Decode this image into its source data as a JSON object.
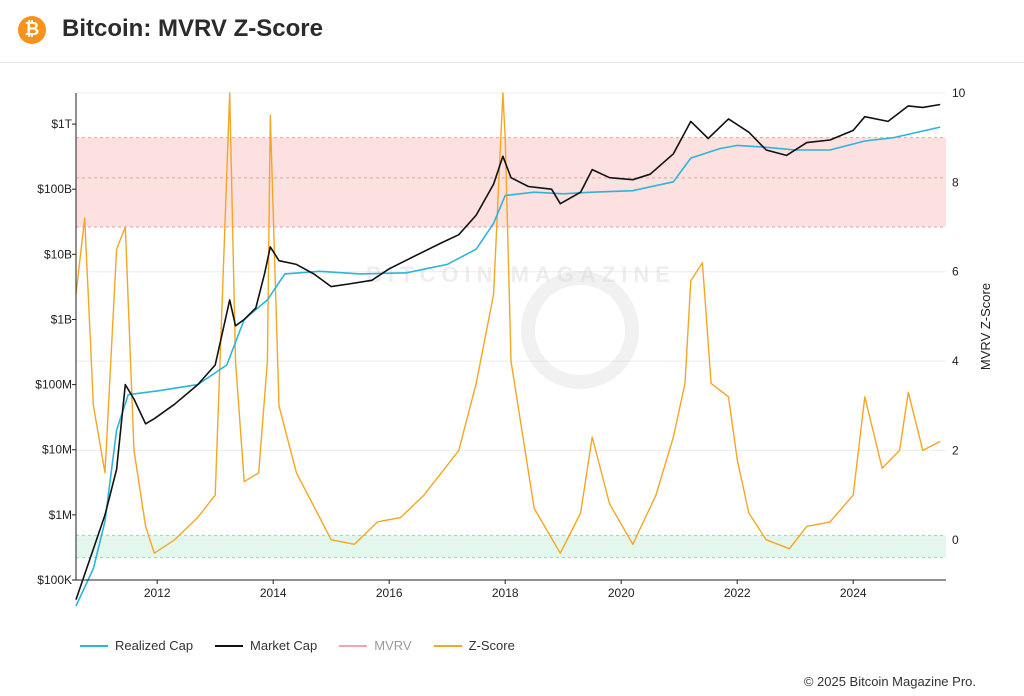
{
  "header": {
    "logo_glyph": "₿",
    "title": "Bitcoin: MVRV Z-Score"
  },
  "legend": [
    {
      "label": "Realized Cap",
      "color": "#2cb5d9",
      "dim": false
    },
    {
      "label": "Market Cap",
      "color": "#111111",
      "dim": false
    },
    {
      "label": "MVRV",
      "color": "#f2a7a7",
      "dim": true
    },
    {
      "label": "Z-Score",
      "color": "#f5a623",
      "dim": false
    }
  ],
  "footer": {
    "copyright": "© 2025 Bitcoin Magazine Pro."
  },
  "chart_data": {
    "type": "line",
    "title": "",
    "x_ticks": [
      "2012",
      "2014",
      "2016",
      "2018",
      "2020",
      "2022",
      "2024"
    ],
    "xlim": [
      2010.6,
      2025.6
    ],
    "left_axis": {
      "scale": "log",
      "ticks": [
        "$100K",
        "$1M",
        "$10M",
        "$100M",
        "$1B",
        "$10B",
        "$100B",
        "$1T"
      ],
      "range": [
        100000,
        3000000000000
      ]
    },
    "right_axis": {
      "label": "MVRV Z-Score",
      "ticks": [
        "0",
        "2",
        "4",
        "6",
        "8",
        "10"
      ],
      "range": [
        -0.9,
        10
      ]
    },
    "zones": [
      {
        "name": "overvalued",
        "from": 7,
        "to": 9,
        "color": "#fde0e0"
      },
      {
        "name": "undervalued",
        "from": -0.4,
        "to": 0.1,
        "color": "#e3f7ec"
      }
    ],
    "watermark": "BITCOIN MAGAZINE",
    "series": [
      {
        "name": "Market Cap",
        "color": "#111111",
        "axis": "left",
        "x": [
          2010.6,
          2010.9,
          2011.1,
          2011.3,
          2011.45,
          2011.6,
          2011.8,
          2011.95,
          2012.3,
          2012.7,
          2013.0,
          2013.25,
          2013.35,
          2013.5,
          2013.7,
          2013.85,
          2013.95,
          2014.1,
          2014.4,
          2014.7,
          2015.0,
          2015.3,
          2015.7,
          2016.0,
          2016.5,
          2016.9,
          2017.2,
          2017.5,
          2017.8,
          2017.96,
          2018.1,
          2018.4,
          2018.8,
          2018.95,
          2019.3,
          2019.5,
          2019.8,
          2020.2,
          2020.5,
          2020.9,
          2021.2,
          2021.5,
          2021.85,
          2022.2,
          2022.5,
          2022.85,
          2023.2,
          2023.6,
          2024.0,
          2024.2,
          2024.6,
          2024.95,
          2025.2,
          2025.5
        ],
        "values": [
          50000,
          300000,
          1000000,
          5000000,
          100000000,
          60000000,
          25000000,
          30000000,
          50000000,
          100000000,
          200000000,
          2000000000,
          800000000,
          1000000000,
          1500000000,
          5000000000,
          13000000000,
          8000000000,
          7000000000,
          5000000000,
          3200000000,
          3500000000,
          4000000000,
          6000000000,
          10000000000,
          15000000000,
          20000000000,
          40000000000,
          120000000000,
          320000000000,
          150000000000,
          110000000000,
          100000000000,
          60000000000,
          90000000000,
          200000000000,
          150000000000,
          140000000000,
          170000000000,
          350000000000,
          1100000000000,
          600000000000,
          1200000000000,
          750000000000,
          400000000000,
          330000000000,
          520000000000,
          570000000000,
          800000000000,
          1300000000000,
          1100000000000,
          1900000000000,
          1800000000000,
          2000000000000
        ]
      },
      {
        "name": "Realized Cap",
        "color": "#2cb5d9",
        "axis": "left",
        "x": [
          2010.6,
          2010.9,
          2011.1,
          2011.3,
          2011.5,
          2012.0,
          2012.7,
          2013.2,
          2013.5,
          2013.9,
          2014.2,
          2014.8,
          2015.5,
          2016.3,
          2017.0,
          2017.5,
          2017.8,
          2018.0,
          2018.5,
          2019.0,
          2019.5,
          2020.2,
          2020.9,
          2021.2,
          2021.7,
          2022.0,
          2022.5,
          2023.0,
          2023.6,
          2024.2,
          2024.7,
          2025.5
        ],
        "values": [
          40000,
          150000,
          800000,
          20000000,
          70000000,
          80000000,
          100000000,
          200000000,
          1000000000,
          2000000000,
          5000000000,
          5500000000,
          5000000000,
          5200000000,
          7000000000,
          12000000000,
          30000000000,
          80000000000,
          90000000000,
          85000000000,
          90000000000,
          95000000000,
          130000000000,
          300000000000,
          420000000000,
          470000000000,
          440000000000,
          400000000000,
          400000000000,
          550000000000,
          620000000000,
          900000000000
        ]
      },
      {
        "name": "Z-Score",
        "color": "#f5a623",
        "axis": "right",
        "x": [
          2010.6,
          2010.75,
          2010.9,
          2011.1,
          2011.3,
          2011.45,
          2011.6,
          2011.8,
          2011.95,
          2012.3,
          2012.7,
          2013.0,
          2013.25,
          2013.35,
          2013.5,
          2013.75,
          2013.9,
          2013.95,
          2014.1,
          2014.4,
          2014.8,
          2015.0,
          2015.4,
          2015.8,
          2016.2,
          2016.6,
          2016.9,
          2017.2,
          2017.5,
          2017.8,
          2017.96,
          2018.0,
          2018.1,
          2018.5,
          2018.95,
          2019.3,
          2019.5,
          2019.8,
          2020.2,
          2020.6,
          2020.9,
          2021.1,
          2021.2,
          2021.4,
          2021.55,
          2021.85,
          2022.0,
          2022.2,
          2022.5,
          2022.9,
          2023.2,
          2023.6,
          2024.0,
          2024.2,
          2024.5,
          2024.8,
          2024.95,
          2025.2,
          2025.5
        ],
        "values": [
          5.5,
          7.2,
          3.0,
          1.5,
          6.5,
          7.0,
          2.0,
          0.3,
          -0.3,
          0.0,
          0.5,
          1.0,
          10.0,
          4.0,
          1.3,
          1.5,
          4.0,
          9.5,
          3.0,
          1.5,
          0.5,
          0.0,
          -0.1,
          0.4,
          0.5,
          1.0,
          1.5,
          2.0,
          3.5,
          5.5,
          10.0,
          9.0,
          4.0,
          0.7,
          -0.3,
          0.6,
          2.3,
          0.8,
          -0.1,
          1.0,
          2.3,
          3.5,
          5.8,
          6.2,
          3.5,
          3.2,
          1.8,
          0.6,
          0.0,
          -0.2,
          0.3,
          0.4,
          1.0,
          3.2,
          1.6,
          2.0,
          3.3,
          2.0,
          2.2
        ]
      }
    ]
  }
}
